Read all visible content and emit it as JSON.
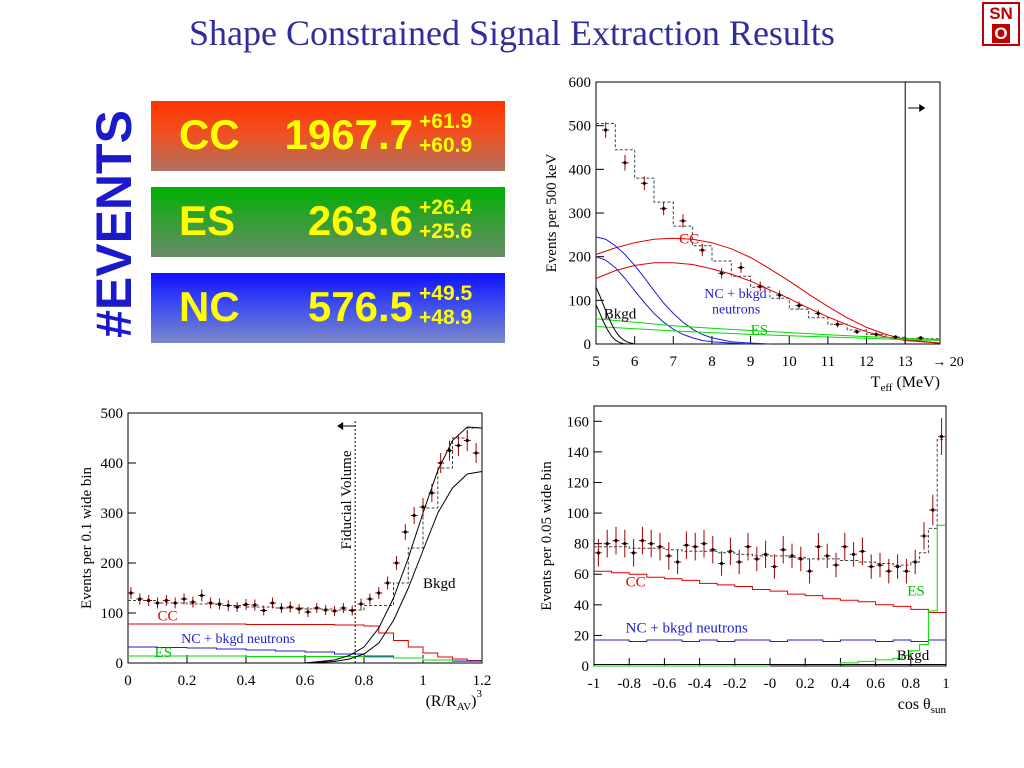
{
  "page": {
    "title": "Shape Constrained Signal Extraction Results",
    "logo_top": "SN",
    "logo_bottom": "O"
  },
  "events_label": "#EVENTS",
  "results": [
    {
      "name": "CC",
      "value": "1967.7",
      "err_up": "+61.9",
      "err_down": "+60.9"
    },
    {
      "name": "ES",
      "value": "263.6",
      "err_up": "+26.4",
      "err_down": "+25.6"
    },
    {
      "name": "NC",
      "value": "576.5",
      "err_up": "+49.5",
      "err_down": "+48.9"
    }
  ],
  "colors": {
    "data": "#a00000",
    "cc": "#e00000",
    "nc": "#2020d0",
    "es": "#00dd00",
    "bkgd": "#000000",
    "total": "#444444"
  },
  "chart_data": [
    {
      "type": "line",
      "ylabel": "Events per 500 keV",
      "xlabel_main": "T",
      "xlabel_sub": "eff",
      "xlabel_unit": " (MeV)",
      "xlim": [
        5,
        13.9
      ],
      "ylim": [
        0,
        600
      ],
      "x_ticks": [
        5,
        6,
        7,
        8,
        9,
        10,
        11,
        12,
        13
      ],
      "y_ticks": [
        0,
        100,
        200,
        300,
        400,
        500,
        600
      ],
      "overflow_label": "→ 20",
      "cut_line_x": 13.0,
      "labels": {
        "cc": "CC",
        "nc": "NC + bkgd",
        "nc2": "neutrons",
        "es": "ES",
        "bkgd": "Bkgd"
      },
      "data_points": {
        "x": [
          5.25,
          5.75,
          6.25,
          6.75,
          7.25,
          7.75,
          8.25,
          8.75,
          9.25,
          9.75,
          10.25,
          10.75,
          11.25,
          11.75,
          12.25,
          12.75,
          13.4
        ],
        "y": [
          490,
          415,
          368,
          310,
          282,
          215,
          162,
          175,
          132,
          112,
          88,
          70,
          45,
          28,
          22,
          16,
          14
        ],
        "err": [
          18,
          18,
          16,
          15,
          15,
          14,
          12,
          12,
          11,
          10,
          9,
          8,
          7,
          5,
          5,
          4,
          4
        ]
      },
      "total_fit": {
        "edges": [
          5,
          5.5,
          6,
          6.5,
          7,
          7.5,
          8,
          8.5,
          9,
          9.5,
          10,
          10.5,
          11,
          11.5,
          12,
          12.5,
          13,
          13.9
        ],
        "y": [
          505,
          445,
          380,
          325,
          270,
          225,
          190,
          155,
          130,
          105,
          80,
          60,
          45,
          32,
          22,
          15,
          12
        ]
      },
      "cc_curve1": {
        "x": [
          5,
          5.5,
          6,
          6.5,
          7,
          7.5,
          8,
          8.5,
          9,
          9.5,
          10,
          10.5,
          11,
          11.5,
          12,
          12.5,
          13,
          13.9
        ],
        "y": [
          205,
          220,
          232,
          240,
          242,
          240,
          232,
          218,
          198,
          172,
          144,
          114,
          86,
          60,
          38,
          22,
          10,
          2
        ]
      },
      "cc_curve2": {
        "x": [
          5,
          5.5,
          6,
          6.5,
          7,
          7.5,
          8,
          8.5,
          9,
          9.5,
          10,
          10.5,
          11,
          11.5,
          12,
          12.5,
          13,
          13.9
        ],
        "y": [
          150,
          168,
          180,
          186,
          186,
          182,
          172,
          160,
          144,
          124,
          104,
          82,
          62,
          44,
          28,
          16,
          8,
          2
        ]
      },
      "nc_curve1": {
        "x": [
          5,
          5.25,
          5.5,
          5.75,
          6,
          6.25,
          6.5,
          6.75,
          7,
          7.25,
          7.5,
          7.75,
          8,
          8.5,
          9,
          9.5
        ],
        "y": [
          245,
          240,
          225,
          205,
          180,
          152,
          122,
          94,
          70,
          50,
          34,
          22,
          14,
          5,
          2,
          0
        ]
      },
      "nc_curve2": {
        "x": [
          5,
          5.25,
          5.5,
          5.75,
          6,
          6.25,
          6.5,
          6.75,
          7,
          7.25,
          7.5,
          7.75,
          8,
          8.5,
          9
        ],
        "y": [
          200,
          192,
          175,
          150,
          122,
          95,
          70,
          50,
          34,
          22,
          14,
          8,
          5,
          2,
          0
        ]
      },
      "es_curve1": {
        "x": [
          5,
          6,
          7,
          8,
          9,
          10,
          11,
          12,
          13,
          13.9
        ],
        "y": [
          58,
          50,
          42,
          36,
          31,
          26,
          21,
          17,
          13,
          10
        ]
      },
      "es_curve2": {
        "x": [
          5,
          6,
          7,
          8,
          9,
          10,
          11,
          12,
          13,
          13.9
        ],
        "y": [
          40,
          35,
          30,
          26,
          22,
          19,
          16,
          13,
          10,
          8
        ]
      },
      "bkgd_curve1": {
        "x": [
          5,
          5.1,
          5.2,
          5.3,
          5.4,
          5.5,
          5.6,
          5.7,
          5.8,
          5.9,
          6.0
        ],
        "y": [
          130,
          110,
          88,
          66,
          46,
          30,
          18,
          10,
          5,
          2,
          0
        ]
      },
      "bkgd_curve2": {
        "x": [
          5,
          5.1,
          5.2,
          5.3,
          5.4,
          5.5,
          5.6,
          5.7,
          5.8
        ],
        "y": [
          90,
          70,
          50,
          32,
          18,
          9,
          4,
          1,
          0
        ]
      }
    },
    {
      "type": "line",
      "ylabel": "Events per 0.1 wide bin",
      "xlabel_main": "(R/R",
      "xlabel_sub": "AV",
      "xlabel_unit": ")",
      "xlabel_sup": "3",
      "xlim": [
        0,
        1.2
      ],
      "ylim": [
        0,
        500
      ],
      "x_ticks": [
        0,
        0.2,
        0.4,
        0.6,
        0.8,
        1,
        1.2
      ],
      "x_tick_labels": [
        "0",
        "0.2",
        "0.4",
        "0.6",
        "0.8",
        "1",
        "1.2"
      ],
      "y_ticks": [
        0,
        100,
        200,
        300,
        400,
        500
      ],
      "cut_line_x": 0.77,
      "cut_label": "Fiducial Volume",
      "labels": {
        "cc": "CC",
        "nc": "NC + bkgd neutrons",
        "es": "ES",
        "bkgd": "Bkgd"
      },
      "data_points": {
        "x": [
          0.01,
          0.04,
          0.07,
          0.1,
          0.13,
          0.16,
          0.19,
          0.22,
          0.25,
          0.28,
          0.31,
          0.34,
          0.37,
          0.4,
          0.43,
          0.46,
          0.49,
          0.52,
          0.55,
          0.58,
          0.61,
          0.64,
          0.67,
          0.7,
          0.73,
          0.76,
          0.79,
          0.82,
          0.85,
          0.88,
          0.91,
          0.94,
          0.97,
          1.0,
          1.03,
          1.06,
          1.09,
          1.12,
          1.15,
          1.18
        ],
        "y": [
          140,
          128,
          125,
          120,
          125,
          120,
          128,
          122,
          135,
          120,
          118,
          115,
          112,
          117,
          116,
          105,
          120,
          110,
          112,
          108,
          102,
          110,
          106,
          104,
          110,
          105,
          118,
          128,
          140,
          160,
          200,
          262,
          295,
          312,
          340,
          400,
          425,
          435,
          445,
          420
        ],
        "err": [
          12,
          11,
          11,
          11,
          11,
          11,
          11,
          11,
          12,
          11,
          11,
          11,
          10,
          11,
          11,
          10,
          11,
          10,
          11,
          10,
          10,
          10,
          10,
          10,
          10,
          10,
          11,
          11,
          12,
          13,
          14,
          16,
          17,
          18,
          18,
          20,
          20,
          21,
          21,
          20
        ]
      },
      "total_fit": {
        "edges": [
          0,
          0.1,
          0.2,
          0.3,
          0.4,
          0.5,
          0.6,
          0.7,
          0.8,
          0.9,
          0.95,
          1.0,
          1.05,
          1.1,
          1.15,
          1.2
        ],
        "y": [
          125,
          120,
          118,
          115,
          112,
          110,
          108,
          106,
          115,
          160,
          230,
          310,
          390,
          450,
          470
        ]
      },
      "cc_hist": {
        "edges": [
          0,
          0.1,
          0.2,
          0.3,
          0.4,
          0.5,
          0.6,
          0.7,
          0.8,
          0.85,
          0.9,
          0.95,
          1.0,
          1.05,
          1.1,
          1.15,
          1.2
        ],
        "y": [
          78,
          78,
          78,
          78,
          77,
          77,
          77,
          76,
          74,
          60,
          45,
          32,
          20,
          12,
          8,
          5
        ]
      },
      "nc_hist": {
        "edges": [
          0,
          0.1,
          0.2,
          0.3,
          0.4,
          0.5,
          0.6,
          0.7,
          0.8,
          0.9,
          1.0,
          1.1,
          1.2
        ],
        "y": [
          32,
          31,
          30,
          28,
          26,
          24,
          22,
          18,
          14,
          10,
          6,
          4
        ]
      },
      "es_hist": {
        "edges": [
          0,
          0.1,
          0.2,
          0.3,
          0.4,
          0.5,
          0.6,
          0.7,
          0.8,
          0.9,
          1.0,
          1.1,
          1.2
        ],
        "y": [
          14,
          14,
          14,
          14,
          13,
          13,
          13,
          13,
          12,
          10,
          6,
          3
        ]
      },
      "bkgd_curve1": {
        "x": [
          0.6,
          0.7,
          0.75,
          0.8,
          0.85,
          0.9,
          0.95,
          1.0,
          1.05,
          1.1,
          1.15,
          1.2
        ],
        "y": [
          0,
          6,
          15,
          32,
          70,
          130,
          210,
          300,
          385,
          445,
          472,
          470
        ]
      },
      "bkgd_curve2": {
        "x": [
          0.6,
          0.7,
          0.75,
          0.8,
          0.85,
          0.9,
          0.95,
          1.0,
          1.05,
          1.1,
          1.15,
          1.2
        ],
        "y": [
          0,
          3,
          8,
          18,
          40,
          85,
          150,
          225,
          300,
          350,
          378,
          383
        ]
      }
    },
    {
      "type": "line",
      "ylabel": "Events per 0.05 wide bin",
      "xlabel_main": "cos θ",
      "xlabel_sub": "sun",
      "xlabel_unit": "",
      "xlim": [
        -1,
        1
      ],
      "ylim": [
        0,
        170
      ],
      "x_ticks": [
        -1,
        -0.8,
        -0.6,
        -0.4,
        -0.2,
        0,
        0.2,
        0.4,
        0.6,
        0.8,
        1
      ],
      "x_tick_labels": [
        "-1",
        "-0.8",
        "-0.6",
        "-0.4",
        "-0.2",
        "-0",
        "0.2",
        "0.4",
        "0.6",
        "0.8",
        "1"
      ],
      "y_ticks": [
        0,
        20,
        40,
        60,
        80,
        100,
        120,
        140,
        160
      ],
      "labels": {
        "cc": "CC",
        "nc": "NC + bkgd neutrons",
        "es": "ES",
        "bkgd": "Bkgd"
      },
      "data_points": {
        "x": [
          -0.975,
          -0.925,
          -0.875,
          -0.825,
          -0.775,
          -0.725,
          -0.675,
          -0.625,
          -0.575,
          -0.525,
          -0.475,
          -0.425,
          -0.375,
          -0.325,
          -0.275,
          -0.225,
          -0.175,
          -0.125,
          -0.075,
          -0.025,
          0.025,
          0.075,
          0.125,
          0.175,
          0.225,
          0.275,
          0.325,
          0.375,
          0.425,
          0.475,
          0.525,
          0.575,
          0.625,
          0.675,
          0.725,
          0.775,
          0.825,
          0.875,
          0.925,
          0.975
        ],
        "y": [
          74,
          80,
          82,
          80,
          74,
          82,
          80,
          78,
          72,
          68,
          79,
          78,
          80,
          76,
          67,
          75,
          68,
          78,
          70,
          73,
          65,
          76,
          72,
          70,
          62,
          78,
          72,
          66,
          78,
          73,
          75,
          65,
          66,
          62,
          65,
          62,
          68,
          85,
          102,
          150
        ],
        "err": [
          9,
          9,
          9,
          9,
          9,
          9,
          9,
          9,
          9,
          8,
          9,
          9,
          9,
          9,
          8,
          9,
          8,
          9,
          8,
          9,
          8,
          9,
          8,
          8,
          8,
          9,
          8,
          8,
          9,
          8,
          9,
          8,
          8,
          8,
          8,
          8,
          8,
          9,
          10,
          12
        ]
      },
      "total_fit": {
        "edges": [
          -1,
          -0.9,
          -0.8,
          -0.7,
          -0.6,
          -0.5,
          -0.4,
          -0.3,
          -0.2,
          -0.1,
          0,
          0.1,
          0.2,
          0.3,
          0.4,
          0.5,
          0.6,
          0.7,
          0.8,
          0.85,
          0.9,
          0.95,
          1.0
        ],
        "y": [
          78,
          78,
          77,
          77,
          76,
          75,
          75,
          74,
          73,
          72,
          72,
          71,
          70,
          70,
          69,
          68,
          67,
          66,
          68,
          74,
          90,
          148
        ]
      },
      "cc_hist": {
        "edges": [
          -1,
          -0.9,
          -0.8,
          -0.7,
          -0.6,
          -0.5,
          -0.4,
          -0.3,
          -0.2,
          -0.1,
          0,
          0.1,
          0.2,
          0.3,
          0.4,
          0.5,
          0.6,
          0.7,
          0.8,
          0.9,
          1.0
        ],
        "y": [
          62,
          61,
          60,
          58,
          57,
          56,
          54,
          53,
          52,
          50,
          49,
          47,
          46,
          44,
          43,
          42,
          40,
          39,
          37,
          35
        ]
      },
      "nc_hist": {
        "edges": [
          -1,
          -0.9,
          -0.8,
          -0.7,
          -0.6,
          -0.5,
          -0.4,
          -0.3,
          -0.2,
          -0.1,
          0,
          0.1,
          0.2,
          0.3,
          0.4,
          0.5,
          0.6,
          0.7,
          0.8,
          0.9,
          1.0
        ],
        "y": [
          17,
          17,
          16,
          17,
          17,
          16,
          17,
          16,
          17,
          17,
          16,
          17,
          17,
          16,
          17,
          17,
          16,
          17,
          16,
          17
        ]
      },
      "es_hist": {
        "edges": [
          -1,
          -0.8,
          -0.6,
          -0.4,
          -0.2,
          0,
          0.2,
          0.4,
          0.5,
          0.6,
          0.7,
          0.75,
          0.8,
          0.85,
          0.9,
          0.95,
          1.0
        ],
        "y": [
          0,
          0,
          0,
          0,
          0,
          1,
          1,
          2,
          3,
          4,
          5,
          7,
          10,
          14,
          36,
          92
        ]
      },
      "bkgd_hist": {
        "edges": [
          -1,
          -0.5,
          0,
          0.5,
          1.0
        ],
        "y": [
          1,
          1,
          1,
          1
        ]
      }
    }
  ]
}
